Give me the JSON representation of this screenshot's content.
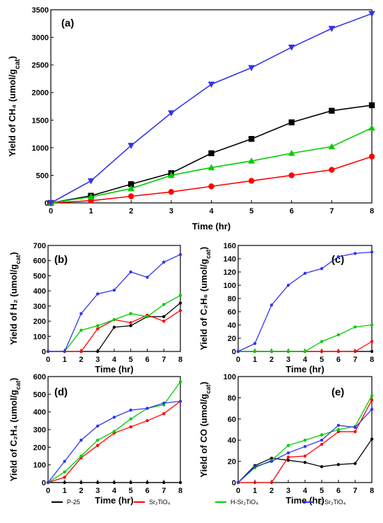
{
  "legend": [
    "P-25",
    "Sr₂TiO₄",
    "H-Sr₂TiO₄",
    "E-Sr₂TiO₄"
  ],
  "colors": {
    "P-25": "#000000",
    "Sr2TiO4": "#ff0000",
    "H-Sr2TiO4": "#00cc00",
    "E-Sr2TiO4": "#3333ee"
  },
  "chart_data": [
    {
      "type": "line",
      "panel_label": "(a)",
      "ylabel": "Yield of CH₄ (umol/g",
      "ylabel_sub": "cat",
      "ylabel_tail": ")",
      "xlabel": "Time (hr)",
      "x": [
        0,
        1,
        2,
        3,
        4,
        5,
        6,
        7,
        8
      ],
      "xlim": [
        0,
        8
      ],
      "ylim": [
        0,
        3500
      ],
      "yticks": [
        0,
        500,
        1000,
        1500,
        2000,
        2500,
        3000,
        3500
      ],
      "series": [
        {
          "name": "P-25",
          "values": [
            0,
            130,
            340,
            540,
            900,
            1160,
            1460,
            1670,
            1770
          ]
        },
        {
          "name": "Sr₂TiO₄",
          "values": [
            0,
            40,
            120,
            200,
            300,
            400,
            500,
            600,
            840
          ]
        },
        {
          "name": "H-Sr₂TiO₄",
          "values": [
            0,
            110,
            260,
            500,
            640,
            760,
            900,
            1020,
            1360
          ]
        },
        {
          "name": "E-Sr₂TiO₄",
          "values": [
            0,
            400,
            1040,
            1630,
            2150,
            2450,
            2820,
            3160,
            3430
          ]
        }
      ]
    },
    {
      "type": "line",
      "panel_label": "(b)",
      "ylabel": "Yield of H₂ (umol/g",
      "ylabel_sub": "cat",
      "ylabel_tail": ")",
      "xlabel": "Time (hr)",
      "x": [
        0,
        1,
        2,
        3,
        4,
        5,
        6,
        7,
        8
      ],
      "xlim": [
        0,
        8
      ],
      "ylim": [
        0,
        700
      ],
      "yticks": [
        0,
        100,
        200,
        300,
        400,
        500,
        600,
        700
      ],
      "series": [
        {
          "name": "P-25",
          "values": [
            0,
            0,
            0,
            0,
            160,
            170,
            230,
            230,
            320
          ]
        },
        {
          "name": "Sr₂TiO₄",
          "values": [
            0,
            0,
            0,
            150,
            210,
            190,
            240,
            200,
            270
          ]
        },
        {
          "name": "H-Sr₂TiO₄",
          "values": [
            0,
            0,
            140,
            170,
            210,
            250,
            230,
            310,
            370
          ]
        },
        {
          "name": "E-Sr₂TiO₄",
          "values": [
            0,
            0,
            250,
            380,
            405,
            525,
            490,
            590,
            640
          ]
        }
      ]
    },
    {
      "type": "line",
      "panel_label": "(c)",
      "ylabel": "Yield of C₂H₆ (umol/g",
      "ylabel_sub": "cat",
      "ylabel_tail": ")",
      "xlabel": "Time (hr)",
      "x": [
        0,
        1,
        2,
        3,
        4,
        5,
        6,
        7,
        8
      ],
      "xlim": [
        0,
        8
      ],
      "ylim": [
        0,
        160
      ],
      "yticks": [
        0,
        20,
        40,
        60,
        80,
        100,
        120,
        140,
        160
      ],
      "series": [
        {
          "name": "P-25",
          "values": [
            0,
            0,
            0,
            0,
            0,
            0,
            0,
            0,
            0
          ]
        },
        {
          "name": "Sr₂TiO₄",
          "values": [
            0,
            0,
            0,
            0,
            0,
            0,
            0,
            0,
            15
          ]
        },
        {
          "name": "H-Sr₂TiO₄",
          "values": [
            0,
            0,
            0,
            0,
            0,
            15,
            25,
            37,
            40
          ]
        },
        {
          "name": "E-Sr₂TiO₄",
          "values": [
            0,
            12,
            70,
            100,
            118,
            125,
            143,
            148,
            150
          ]
        }
      ]
    },
    {
      "type": "line",
      "panel_label": "(d)",
      "ylabel": "Yield of C₂H₄ (umol/g",
      "ylabel_sub": "cat",
      "ylabel_tail": ")",
      "xlabel": "Time (hr)",
      "x": [
        0,
        1,
        2,
        3,
        4,
        5,
        6,
        7,
        8
      ],
      "xlim": [
        0,
        8
      ],
      "ylim": [
        0,
        600
      ],
      "yticks": [
        0,
        100,
        200,
        300,
        400,
        500,
        600
      ],
      "series": [
        {
          "name": "P-25",
          "values": [
            0,
            0,
            0,
            0,
            0,
            0,
            0,
            0,
            0
          ]
        },
        {
          "name": "Sr₂TiO₄",
          "values": [
            0,
            30,
            140,
            210,
            280,
            315,
            350,
            390,
            460
          ]
        },
        {
          "name": "H-Sr₂TiO₄",
          "values": [
            0,
            60,
            150,
            240,
            290,
            360,
            420,
            440,
            570
          ]
        },
        {
          "name": "E-Sr₂TiO₄",
          "values": [
            0,
            120,
            240,
            320,
            370,
            410,
            420,
            450,
            460
          ]
        }
      ]
    },
    {
      "type": "line",
      "panel_label": "(e)",
      "ylabel": "Yield of CO (umol/g",
      "ylabel_sub": "cat",
      "ylabel_tail": ")",
      "xlabel": "Time (hr)",
      "x": [
        0,
        1,
        2,
        3,
        4,
        5,
        6,
        7,
        8
      ],
      "xlim": [
        0,
        8
      ],
      "ylim": [
        0,
        100
      ],
      "yticks": [
        0,
        20,
        40,
        60,
        80,
        100
      ],
      "series": [
        {
          "name": "P-25",
          "values": [
            0,
            16,
            23,
            21,
            19,
            15,
            17,
            18,
            41
          ]
        },
        {
          "name": "Sr₂TiO₄",
          "values": [
            0,
            0,
            0,
            24,
            25,
            36,
            48,
            48,
            78
          ]
        },
        {
          "name": "H-Sr₂TiO₄",
          "values": [
            0,
            14,
            21,
            35,
            40,
            45,
            50,
            53,
            82
          ]
        },
        {
          "name": "E-Sr₂TiO₄",
          "values": [
            0,
            15,
            20,
            28,
            34,
            40,
            54,
            52,
            69
          ]
        }
      ]
    }
  ]
}
